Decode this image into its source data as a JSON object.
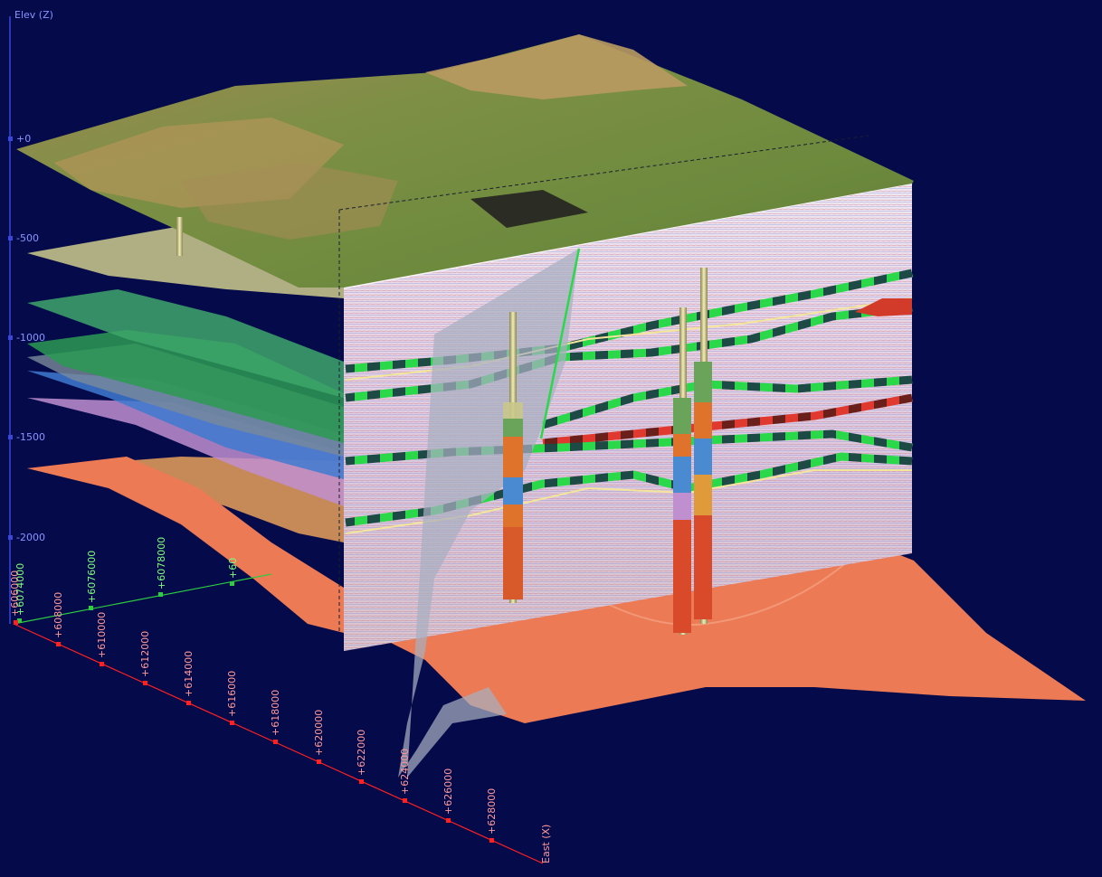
{
  "scene": {
    "background": "#040a4a",
    "colors": {
      "z_axis": "#3a46d8",
      "z_label": "#8a94ff",
      "north_axis": "#2ecc40",
      "north_label": "#7dff7d",
      "east_axis": "#ff2020",
      "east_label": "#ff9a9a",
      "terrain": "#6f8a3a",
      "basement": "#ec7a55",
      "fault": "#a8aec0"
    },
    "icons": [
      "terrain-surface",
      "seismic-section",
      "fault-plane",
      "well-bore"
    ]
  },
  "axes": {
    "z": {
      "title": "Elev (Z)",
      "ticks": [
        "+0",
        "-500",
        "-1000",
        "-1500",
        "-2000"
      ]
    },
    "north": {
      "ticks": [
        "+6074000",
        "+6076000",
        "+6078000",
        "+60"
      ]
    },
    "east": {
      "title": "East (X)",
      "ticks": [
        "+606000",
        "+608000",
        "+610000",
        "+612000",
        "+614000",
        "+616000",
        "+618000",
        "+620000",
        "+622000",
        "+624000",
        "+626000",
        "+628000"
      ]
    }
  }
}
